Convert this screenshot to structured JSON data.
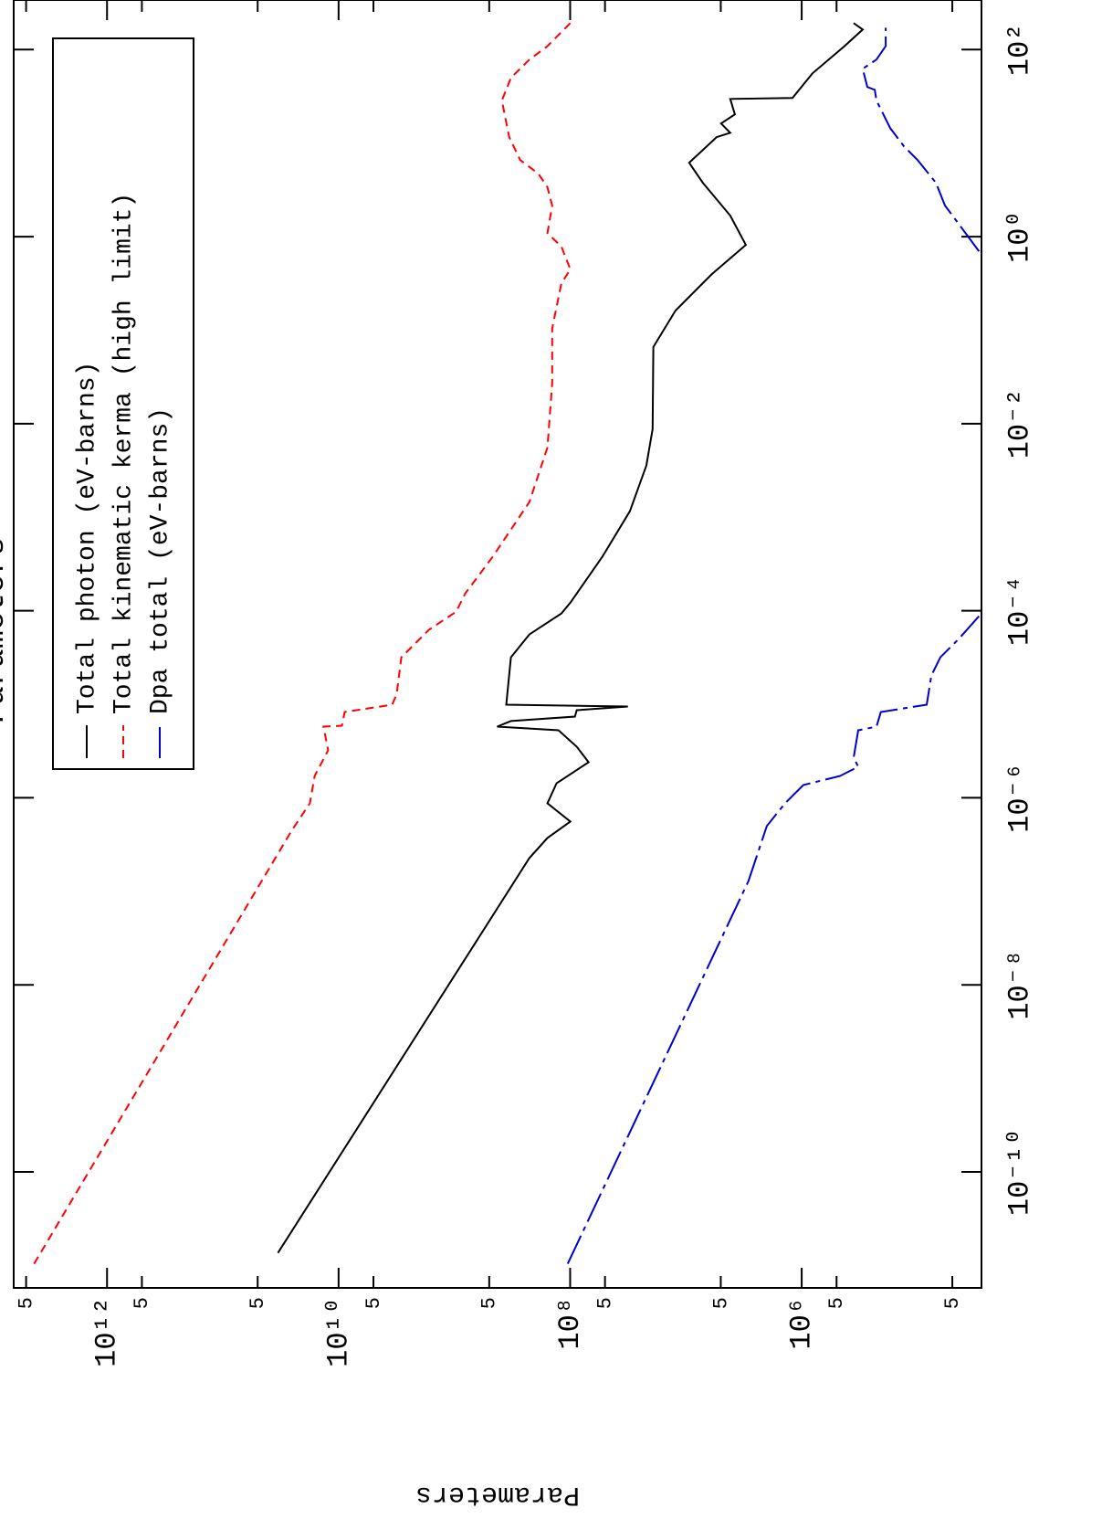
{
  "chart_data": {
    "type": "line",
    "title": "Parameters",
    "y_label": "Parameters",
    "log_x": true,
    "log_y": true,
    "legend": "upper left",
    "xlim": [
      5.75e-12,
      339
    ],
    "ylim": [
      28000.0,
      6400000000000.0
    ],
    "xticks": [
      {
        "value": 1e-10,
        "label": "10⁻¹⁰"
      },
      {
        "value": 1e-08,
        "label": "10⁻⁸"
      },
      {
        "value": 1e-06,
        "label": "10⁻⁶"
      },
      {
        "value": 0.0001,
        "label": "10⁻⁴"
      },
      {
        "value": 0.01,
        "label": "10⁻²"
      },
      {
        "value": 1,
        "label": "10⁰"
      },
      {
        "value": 100,
        "label": "10²"
      }
    ],
    "yticks": [
      {
        "value": 5000000000000.0,
        "label": "5"
      },
      {
        "value": 1000000000000.0,
        "label": "10¹²"
      },
      {
        "value": 500000000000.0,
        "label": "5"
      },
      {
        "value": 50000000000.0,
        "label": "5"
      },
      {
        "value": 10000000000.0,
        "label": "10¹⁰"
      },
      {
        "value": 5000000000.0,
        "label": "5"
      },
      {
        "value": 500000000.0,
        "label": "5"
      },
      {
        "value": 100000000.0,
        "label": "10⁸"
      },
      {
        "value": 50000000.0,
        "label": "5"
      },
      {
        "value": 5000000.0,
        "label": "5"
      },
      {
        "value": 1000000.0,
        "label": "10⁶"
      },
      {
        "value": 500000.0,
        "label": "5"
      },
      {
        "value": 50000.0,
        "label": "5"
      }
    ],
    "series": [
      {
        "name": "Total photon (eV-barns)",
        "color": "#000000",
        "linestyle": "solid",
        "x": [
          1.36e-11,
          2.27e-07,
          3.72e-07,
          5.57e-07,
          8.75e-07,
          1.43e-06,
          2.4e-06,
          3.52e-06,
          5.27e-06,
          5.77e-06,
          6.61e-06,
          7.38e-06,
          8.65e-06,
          9.46e-06,
          9.9e-06,
          3.18e-05,
          5.58e-05,
          9.35e-05,
          0.000122,
          0.000377,
          0.00116,
          0.00356,
          0.00874,
          0.0661,
          0.162,
          0.398,
          0.817,
          1.68,
          3.77,
          6.17,
          11.6,
          12.9,
          16.2,
          20.3,
          29.7,
          30.4,
          55.7,
          109,
          164,
          192
        ],
        "values": [
          33400000000.0,
          225000000.0,
          157000000.0,
          99500000.0,
          157000000.0,
          131000000.0,
          69200000.0,
          87700000.0,
          126000000.0,
          427000000.0,
          325000000.0,
          91000000.0,
          87700000.0,
          31700000.0,
          356000000.0,
          325000000.0,
          225000000.0,
          119000000.0,
          99500000.0,
          52700000.0,
          30500000.0,
          22000000.0,
          19400000.0,
          19100000.0,
          12300000.0,
          5960000.0,
          3040000.0,
          4140000.0,
          7140000.0,
          9380000.0,
          5430000.0,
          4140000.0,
          4970000.0,
          3780000.0,
          4140000.0,
          1200000.0,
          807000.0,
          427000.0,
          297000.0,
          356000.0
        ]
      },
      {
        "name": "Total kinematic kerma (high limit)",
        "color": "#ff0000",
        "linestyle": "dashed",
        "x": [
          1.04e-11,
          4.46e-07,
          8.75e-07,
          1.71e-06,
          3.22e-06,
          5.77e-06,
          5.9e-06,
          8.26e-06,
          9.9e-06,
          1.29e-05,
          3.18e-05,
          6.24e-05,
          9.77e-05,
          0.000153,
          0.000377,
          0.00145,
          0.00557,
          0.0269,
          0.104,
          0.318,
          0.446,
          0.782,
          1.09,
          2.15,
          3.37,
          4.71,
          6.6,
          11.6,
          28.5,
          49.9,
          78.2,
          109,
          192
        ],
        "values": [
          4270000000000.0,
          25400000000.0,
          17700000000.0,
          16100000000.0,
          12300000000.0,
          13500000000.0,
          9360000000.0,
          8870000000.0,
          3440000000.0,
          3150000000.0,
          2870000000.0,
          1660000000.0,
          966000000.0,
          805000000.0,
          467000000.0,
          225000000.0,
          157000000.0,
          143000000.0,
          143000000.0,
          119000000.0,
          99500000.0,
          119000000.0,
          157000000.0,
          143000000.0,
          157000000.0,
          188000000.0,
          270000000.0,
          336000000.0,
          389000000.0,
          325000000.0,
          225000000.0,
          157000000.0,
          99500000.0
        ]
      },
      {
        "name": "Dpa total (eV-barns)",
        "color": "#0000cc",
        "linestyle": "dashdot",
        "x": [
          1.04e-11,
          1.29e-07,
          4.99e-07,
          8.75e-07,
          1.37e-06,
          1.71e-06,
          2.15e-06,
          2.69e-06,
          5.27e-06,
          5.77e-06,
          8.26e-06,
          9.9e-06,
          2.03e-05,
          3.18e-05,
          4.99e-05,
          8.75e-05,
          0.001,
          0.698,
          1.37,
          2.15,
          3.77,
          6.6,
          9.25,
          14.5,
          28.5,
          37.2,
          39.8,
          62.4,
          78.2,
          109,
          171
        ],
        "values": [
          105000000.0,
          2880000.0,
          2000000.0,
          1390000.0,
          966000.0,
          468000.0,
          325000.0,
          356000.0,
          325000.0,
          226000.0,
          207000.0,
          83200.0,
          75900.0,
          63400.0,
          44100.0,
          29400.0,
          null,
          29400.0,
          44100.0,
          57900.0,
          69300.0,
          99800.0,
          131000.0,
          172000.0,
          226000.0,
          234000.0,
          271000.0,
          297000.0,
          226000.0,
          188000.0,
          188000.0
        ]
      }
    ]
  }
}
